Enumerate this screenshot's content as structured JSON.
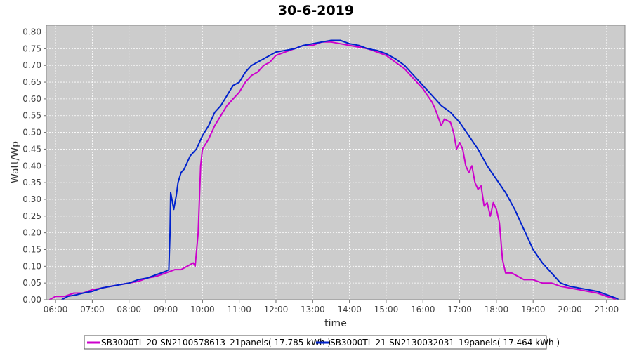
{
  "chart_data": {
    "type": "line",
    "title": "30-6-2019",
    "xlabel": "time",
    "ylabel": "Watt/Wp",
    "xlim": [
      "05:45",
      "21:30"
    ],
    "ylim": [
      0,
      0.82
    ],
    "x_ticks": [
      "06:00",
      "07:00",
      "08:00",
      "09:00",
      "10:00",
      "11:00",
      "12:00",
      "13:00",
      "14:00",
      "15:00",
      "16:00",
      "17:00",
      "18:00",
      "19:00",
      "20:00",
      "21:00"
    ],
    "y_ticks": [
      "0.00",
      "0.05",
      "0.10",
      "0.15",
      "0.20",
      "0.25",
      "0.30",
      "0.35",
      "0.40",
      "0.45",
      "0.50",
      "0.55",
      "0.60",
      "0.65",
      "0.70",
      "0.75",
      "0.80"
    ],
    "grid": true,
    "legend_position": "bottom",
    "plot_background": "#cccccc",
    "series": [
      {
        "name": "SB3000TL-20-SN2100578613_21panels( 17.785 kWh )",
        "color": "#cc00cc",
        "points": [
          [
            "05:50",
            0.0
          ],
          [
            "06:00",
            0.01
          ],
          [
            "06:15",
            0.01
          ],
          [
            "06:30",
            0.02
          ],
          [
            "06:45",
            0.02
          ],
          [
            "07:00",
            0.03
          ],
          [
            "07:15",
            0.035
          ],
          [
            "07:30",
            0.04
          ],
          [
            "07:45",
            0.045
          ],
          [
            "08:00",
            0.05
          ],
          [
            "08:15",
            0.055
          ],
          [
            "08:30",
            0.065
          ],
          [
            "08:45",
            0.07
          ],
          [
            "09:00",
            0.08
          ],
          [
            "09:15",
            0.09
          ],
          [
            "09:25",
            0.09
          ],
          [
            "09:35",
            0.1
          ],
          [
            "09:45",
            0.11
          ],
          [
            "09:48",
            0.1
          ],
          [
            "09:53",
            0.2
          ],
          [
            "09:57",
            0.4
          ],
          [
            "10:00",
            0.45
          ],
          [
            "10:10",
            0.48
          ],
          [
            "10:20",
            0.52
          ],
          [
            "10:30",
            0.55
          ],
          [
            "10:40",
            0.58
          ],
          [
            "10:50",
            0.6
          ],
          [
            "11:00",
            0.62
          ],
          [
            "11:10",
            0.65
          ],
          [
            "11:20",
            0.67
          ],
          [
            "11:30",
            0.68
          ],
          [
            "11:40",
            0.7
          ],
          [
            "11:50",
            0.71
          ],
          [
            "12:00",
            0.73
          ],
          [
            "12:15",
            0.74
          ],
          [
            "12:30",
            0.75
          ],
          [
            "12:45",
            0.76
          ],
          [
            "13:00",
            0.76
          ],
          [
            "13:15",
            0.77
          ],
          [
            "13:30",
            0.77
          ],
          [
            "13:45",
            0.765
          ],
          [
            "14:00",
            0.76
          ],
          [
            "14:15",
            0.755
          ],
          [
            "14:30",
            0.75
          ],
          [
            "14:45",
            0.74
          ],
          [
            "15:00",
            0.73
          ],
          [
            "15:15",
            0.71
          ],
          [
            "15:30",
            0.69
          ],
          [
            "15:45",
            0.66
          ],
          [
            "16:00",
            0.63
          ],
          [
            "16:15",
            0.59
          ],
          [
            "16:20",
            0.57
          ],
          [
            "16:30",
            0.52
          ],
          [
            "16:35",
            0.54
          ],
          [
            "16:45",
            0.53
          ],
          [
            "16:50",
            0.5
          ],
          [
            "16:55",
            0.45
          ],
          [
            "17:00",
            0.47
          ],
          [
            "17:05",
            0.45
          ],
          [
            "17:10",
            0.4
          ],
          [
            "17:15",
            0.38
          ],
          [
            "17:20",
            0.4
          ],
          [
            "17:25",
            0.35
          ],
          [
            "17:30",
            0.33
          ],
          [
            "17:35",
            0.34
          ],
          [
            "17:40",
            0.28
          ],
          [
            "17:45",
            0.29
          ],
          [
            "17:50",
            0.25
          ],
          [
            "17:55",
            0.29
          ],
          [
            "18:00",
            0.27
          ],
          [
            "18:05",
            0.23
          ],
          [
            "18:10",
            0.12
          ],
          [
            "18:15",
            0.08
          ],
          [
            "18:25",
            0.08
          ],
          [
            "18:35",
            0.07
          ],
          [
            "18:45",
            0.06
          ],
          [
            "19:00",
            0.06
          ],
          [
            "19:15",
            0.05
          ],
          [
            "19:30",
            0.05
          ],
          [
            "19:45",
            0.04
          ],
          [
            "20:00",
            0.035
          ],
          [
            "20:15",
            0.03
          ],
          [
            "20:30",
            0.025
          ],
          [
            "20:45",
            0.02
          ],
          [
            "21:00",
            0.01
          ],
          [
            "21:10",
            0.005
          ],
          [
            "21:15",
            0.0
          ]
        ]
      },
      {
        "name": "SB3000TL-21-SN2130032031_19panels( 17.464 kWh )",
        "color": "#0022cc",
        "points": [
          [
            "06:10",
            0.0
          ],
          [
            "06:20",
            0.01
          ],
          [
            "06:35",
            0.015
          ],
          [
            "06:45",
            0.02
          ],
          [
            "07:00",
            0.025
          ],
          [
            "07:15",
            0.035
          ],
          [
            "07:30",
            0.04
          ],
          [
            "07:45",
            0.045
          ],
          [
            "08:00",
            0.05
          ],
          [
            "08:15",
            0.06
          ],
          [
            "08:30",
            0.065
          ],
          [
            "08:45",
            0.075
          ],
          [
            "09:00",
            0.085
          ],
          [
            "09:05",
            0.09
          ],
          [
            "09:07",
            0.2
          ],
          [
            "09:08",
            0.32
          ],
          [
            "09:10",
            0.3
          ],
          [
            "09:13",
            0.27
          ],
          [
            "09:17",
            0.31
          ],
          [
            "09:20",
            0.35
          ],
          [
            "09:25",
            0.38
          ],
          [
            "09:30",
            0.39
          ],
          [
            "09:40",
            0.43
          ],
          [
            "09:50",
            0.45
          ],
          [
            "10:00",
            0.49
          ],
          [
            "10:10",
            0.52
          ],
          [
            "10:20",
            0.56
          ],
          [
            "10:30",
            0.58
          ],
          [
            "10:40",
            0.61
          ],
          [
            "10:50",
            0.64
          ],
          [
            "11:00",
            0.65
          ],
          [
            "11:10",
            0.68
          ],
          [
            "11:20",
            0.7
          ],
          [
            "11:30",
            0.71
          ],
          [
            "11:40",
            0.72
          ],
          [
            "11:50",
            0.73
          ],
          [
            "12:00",
            0.74
          ],
          [
            "12:15",
            0.745
          ],
          [
            "12:30",
            0.75
          ],
          [
            "12:45",
            0.76
          ],
          [
            "13:00",
            0.765
          ],
          [
            "13:15",
            0.77
          ],
          [
            "13:30",
            0.775
          ],
          [
            "13:45",
            0.775
          ],
          [
            "14:00",
            0.765
          ],
          [
            "14:15",
            0.76
          ],
          [
            "14:30",
            0.75
          ],
          [
            "14:45",
            0.745
          ],
          [
            "15:00",
            0.735
          ],
          [
            "15:15",
            0.72
          ],
          [
            "15:30",
            0.7
          ],
          [
            "15:45",
            0.67
          ],
          [
            "16:00",
            0.64
          ],
          [
            "16:15",
            0.61
          ],
          [
            "16:30",
            0.58
          ],
          [
            "16:45",
            0.56
          ],
          [
            "17:00",
            0.53
          ],
          [
            "17:15",
            0.49
          ],
          [
            "17:30",
            0.45
          ],
          [
            "17:45",
            0.4
          ],
          [
            "18:00",
            0.36
          ],
          [
            "18:15",
            0.32
          ],
          [
            "18:30",
            0.27
          ],
          [
            "18:45",
            0.21
          ],
          [
            "19:00",
            0.15
          ],
          [
            "19:15",
            0.11
          ],
          [
            "19:30",
            0.08
          ],
          [
            "19:45",
            0.05
          ],
          [
            "20:00",
            0.04
          ],
          [
            "20:15",
            0.035
          ],
          [
            "20:30",
            0.03
          ],
          [
            "20:45",
            0.025
          ],
          [
            "21:00",
            0.015
          ],
          [
            "21:15",
            0.005
          ],
          [
            "21:20",
            0.0
          ]
        ]
      }
    ]
  }
}
